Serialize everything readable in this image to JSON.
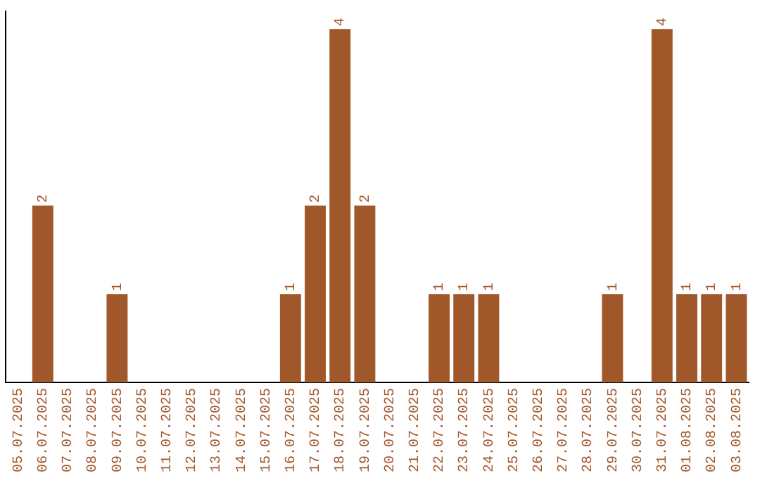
{
  "chart_data": {
    "type": "bar",
    "categories": [
      "05.07.2025",
      "06.07.2025",
      "07.07.2025",
      "08.07.2025",
      "09.07.2025",
      "10.07.2025",
      "11.07.2025",
      "12.07.2025",
      "13.07.2025",
      "14.07.2025",
      "15.07.2025",
      "16.07.2025",
      "17.07.2025",
      "18.07.2025",
      "19.07.2025",
      "20.07.2025",
      "21.07.2025",
      "22.07.2025",
      "23.07.2025",
      "24.07.2025",
      "25.07.2025",
      "26.07.2025",
      "27.07.2025",
      "28.07.2025",
      "29.07.2025",
      "30.07.2025",
      "31.07.2025",
      "01.08.2025",
      "02.08.2025",
      "03.08.2025"
    ],
    "values": [
      0,
      2,
      0,
      0,
      1,
      0,
      0,
      0,
      0,
      0,
      0,
      1,
      2,
      4,
      2,
      0,
      0,
      1,
      1,
      1,
      0,
      0,
      0,
      0,
      1,
      0,
      4,
      1,
      1,
      1
    ],
    "value_labels": [
      null,
      "2",
      null,
      null,
      "1",
      null,
      null,
      null,
      null,
      null,
      null,
      "1",
      "2",
      "4",
      "2",
      null,
      null,
      "1",
      "1",
      "1",
      null,
      null,
      null,
      null,
      "1",
      null,
      "4",
      "1",
      "1",
      "1"
    ],
    "color": "#a0582a",
    "ylim": [
      0,
      4.2
    ],
    "tick_labels": "x",
    "grid": false,
    "legend": false
  }
}
